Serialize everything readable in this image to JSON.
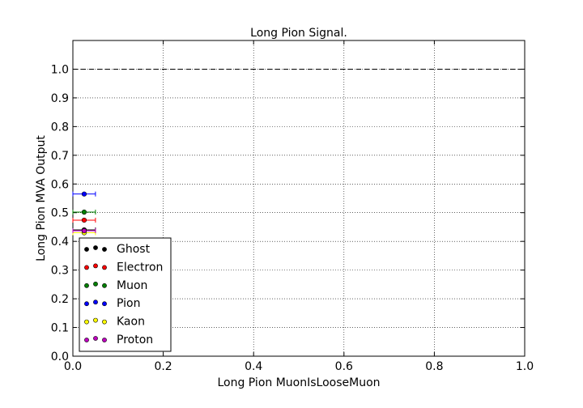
{
  "chart_data": {
    "type": "scatter",
    "title": "Long Pion Signal.",
    "xlabel": "Long Pion MuonIsLooseMuon",
    "ylabel": "Long Pion MVA Output",
    "xlim": [
      0.0,
      1.0
    ],
    "ylim": [
      0.0,
      1.1
    ],
    "xticks": [
      "0.0",
      "0.2",
      "0.4",
      "0.6",
      "0.8",
      "1.0"
    ],
    "yticks": [
      "0.0",
      "0.1",
      "0.2",
      "0.3",
      "0.4",
      "0.5",
      "0.6",
      "0.7",
      "0.8",
      "0.9",
      "1.0"
    ],
    "grid": true,
    "reference_line_y": 1.0,
    "legend_position": "lower-left",
    "series": [
      {
        "name": "Ghost",
        "color": "#000000",
        "x": 0.025,
        "y": 0.44,
        "xerr": 0.025
      },
      {
        "name": "Electron",
        "color": "#ff0000",
        "x": 0.025,
        "y": 0.474,
        "xerr": 0.025
      },
      {
        "name": "Muon",
        "color": "#008000",
        "x": 0.025,
        "y": 0.502,
        "xerr": 0.025
      },
      {
        "name": "Pion",
        "color": "#0000ff",
        "x": 0.025,
        "y": 0.565,
        "xerr": 0.025
      },
      {
        "name": "Kaon",
        "color": "#ffff00",
        "x": 0.025,
        "y": 0.43,
        "xerr": 0.025
      },
      {
        "name": "Proton",
        "color": "#bf00bf",
        "x": 0.025,
        "y": 0.437,
        "xerr": 0.025
      }
    ]
  }
}
